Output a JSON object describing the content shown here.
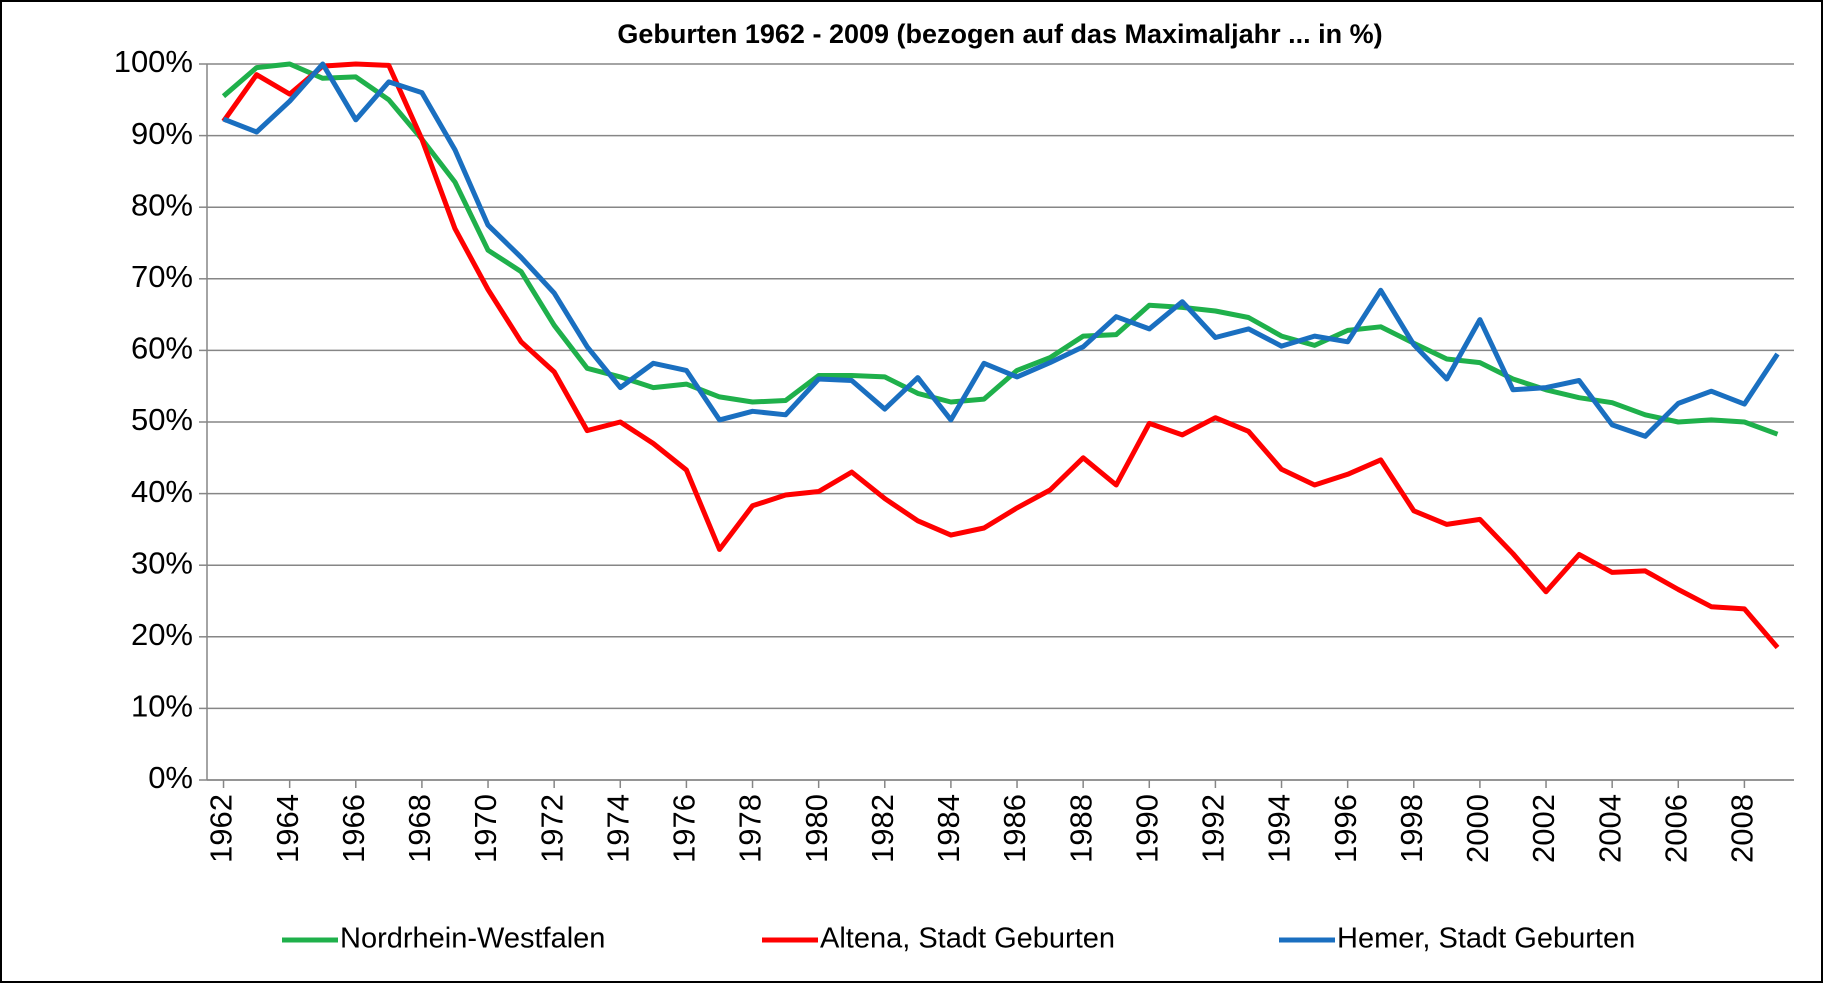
{
  "chart_data": {
    "type": "line",
    "title": "Geburten 1962 - 2009 (bezogen auf das Maximaljahr ... in %)",
    "x": [
      1962,
      1963,
      1964,
      1965,
      1966,
      1967,
      1968,
      1969,
      1970,
      1971,
      1972,
      1973,
      1974,
      1975,
      1976,
      1977,
      1978,
      1979,
      1980,
      1981,
      1982,
      1983,
      1984,
      1985,
      1986,
      1987,
      1988,
      1989,
      1990,
      1991,
      1992,
      1993,
      1994,
      1995,
      1996,
      1997,
      1998,
      1999,
      2000,
      2001,
      2002,
      2003,
      2004,
      2005,
      2006,
      2007,
      2008,
      2009
    ],
    "xlim": [
      1961.5,
      2009.5
    ],
    "xticks": [
      1962,
      1964,
      1966,
      1968,
      1970,
      1972,
      1974,
      1976,
      1978,
      1980,
      1982,
      1984,
      1986,
      1988,
      1990,
      1992,
      1994,
      1996,
      1998,
      2000,
      2002,
      2004,
      2006,
      2008
    ],
    "ylim": [
      0,
      100
    ],
    "yticks": [
      {
        "value": 0,
        "label": "0%"
      },
      {
        "value": 10,
        "label": "10%"
      },
      {
        "value": 20,
        "label": "20%"
      },
      {
        "value": 30,
        "label": "30%"
      },
      {
        "value": 40,
        "label": "40%"
      },
      {
        "value": 50,
        "label": "50%"
      },
      {
        "value": 60,
        "label": "60%"
      },
      {
        "value": 70,
        "label": "70%"
      },
      {
        "value": 80,
        "label": "80%"
      },
      {
        "value": 90,
        "label": "90%"
      },
      {
        "value": 100,
        "label": "100%"
      }
    ],
    "grid": true,
    "legend": "bottom",
    "series": [
      {
        "name": "Nordrhein-Westfalen",
        "color": "#1fb04b",
        "values": [
          95.5,
          99.5,
          100,
          98,
          98.2,
          95,
          89.5,
          83.5,
          74,
          71,
          63.5,
          57.5,
          56.3,
          54.8,
          55.3,
          53.5,
          52.8,
          53,
          56.5,
          56.5,
          56.3,
          54,
          52.8,
          53.2,
          57.2,
          59,
          62,
          62.2,
          66.3,
          66,
          65.5,
          64.6,
          62,
          60.7,
          62.8,
          63.3,
          61,
          58.8,
          58.3,
          56,
          54.5,
          53.4,
          52.7,
          51,
          50,
          50.3,
          50,
          48.3
        ]
      },
      {
        "name": "Altena, Stadt Geburten",
        "color": "#ff0000",
        "values": [
          92,
          98.5,
          95.8,
          99.7,
          100,
          99.8,
          89.5,
          77,
          68.5,
          61.2,
          57,
          48.8,
          50,
          47,
          43.3,
          32.2,
          38.3,
          39.8,
          40.3,
          43,
          39.3,
          36.2,
          34.2,
          35.2,
          38,
          40.5,
          45,
          41.2,
          49.8,
          48.2,
          50.6,
          48.7,
          43.4,
          41.2,
          42.7,
          44.7,
          37.6,
          35.7,
          36.4,
          31.6,
          26.3,
          31.5,
          29,
          29.2,
          26.6,
          24.2,
          23.9,
          18.5
        ]
      },
      {
        "name": "Hemer, Stadt Geburten",
        "color": "#1a6fc0",
        "values": [
          92.3,
          90.5,
          94.8,
          100,
          92.2,
          97.5,
          96,
          88,
          77.5,
          73,
          68,
          60.5,
          54.8,
          58.2,
          57.2,
          50.3,
          51.5,
          51,
          56,
          55.8,
          51.8,
          56.2,
          50.3,
          58.2,
          56.3,
          58.3,
          60.5,
          64.7,
          63,
          66.8,
          61.8,
          63,
          60.6,
          62,
          61.2,
          68.4,
          60.8,
          56,
          64.3,
          54.5,
          54.8,
          55.8,
          49.6,
          48,
          52.6,
          54.3,
          52.5,
          59.5
        ]
      }
    ]
  }
}
